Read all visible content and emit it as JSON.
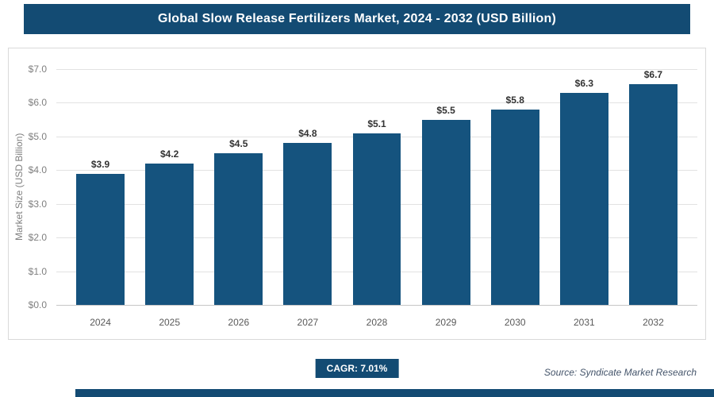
{
  "header": {
    "title": "Global Slow Release Fertilizers Market, 2024 - 2032 (USD Billion)"
  },
  "chart_data": {
    "type": "bar",
    "title": "Global Slow Release Fertilizers Market, 2024 - 2032 (USD Billion)",
    "categories": [
      "2024",
      "2025",
      "2026",
      "2027",
      "2028",
      "2029",
      "2030",
      "2031",
      "2032"
    ],
    "values": [
      3.9,
      4.2,
      4.5,
      4.8,
      5.1,
      5.5,
      5.8,
      6.3,
      6.7
    ],
    "value_labels": [
      "$3.9",
      "$4.2",
      "$4.5",
      "$4.8",
      "$5.1",
      "$5.5",
      "$5.8",
      "$6.3",
      "$6.7"
    ],
    "xlabel": "",
    "ylabel": "Market Size (USD Billion)",
    "ylim": [
      0,
      7
    ],
    "yticks": [
      {
        "value": 0,
        "label": "$0.0"
      },
      {
        "value": 1,
        "label": "$1.0"
      },
      {
        "value": 2,
        "label": "$2.0"
      },
      {
        "value": 3,
        "label": "$3.0"
      },
      {
        "value": 4,
        "label": "$4.0"
      },
      {
        "value": 5,
        "label": "$5.0"
      },
      {
        "value": 6,
        "label": "$6.0"
      },
      {
        "value": 7,
        "label": "$7.0"
      }
    ],
    "grid": true,
    "legend": false,
    "bar_color": "#15537E"
  },
  "footer": {
    "cagr_label": "CAGR: 7.01%",
    "source": "Source: Syndicate Market Research"
  },
  "colors": {
    "accent": "#134B73",
    "bar": "#15537E",
    "grid": "#E2E2E2"
  }
}
